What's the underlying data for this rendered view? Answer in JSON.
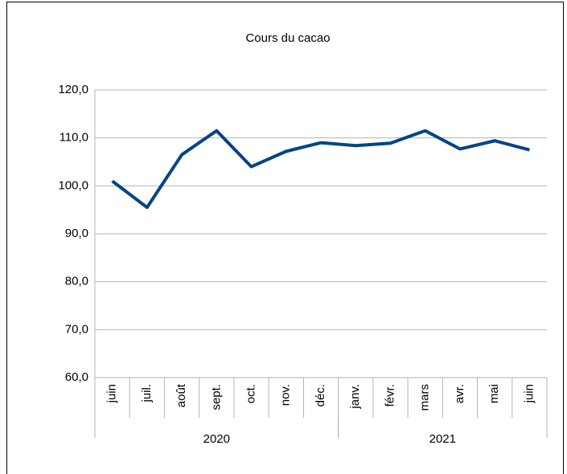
{
  "chart_data": {
    "type": "line",
    "title": "Cours du cacao",
    "category_groups": [
      {
        "label": "2020",
        "categories": [
          "juin",
          "juil.",
          "août",
          "sept.",
          "oct.",
          "nov.",
          "déc."
        ]
      },
      {
        "label": "2021",
        "categories": [
          "janv.",
          "févr.",
          "mars",
          "avr.",
          "mai",
          "juin"
        ]
      }
    ],
    "series": [
      {
        "color": "#004586",
        "values": [
          101.0,
          95.5,
          106.5,
          111.5,
          104.0,
          107.2,
          109.0,
          108.4,
          108.9,
          111.5,
          107.7,
          109.4,
          107.5
        ]
      }
    ],
    "ylim": [
      60,
      120
    ],
    "yticks": [
      {
        "value": 60,
        "label": "60,0"
      },
      {
        "value": 70,
        "label": "70,0"
      },
      {
        "value": 80,
        "label": "80,0"
      },
      {
        "value": 90,
        "label": "90,0"
      },
      {
        "value": 100,
        "label": "100,0"
      },
      {
        "value": 110,
        "label": "110,0"
      },
      {
        "value": 120,
        "label": "120,0"
      }
    ],
    "grid": true
  }
}
